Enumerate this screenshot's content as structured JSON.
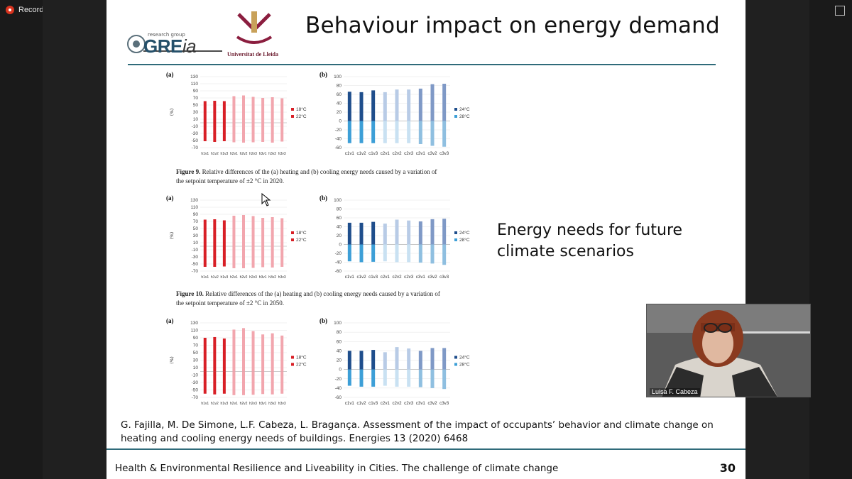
{
  "recording": {
    "label": "Recording"
  },
  "slide": {
    "title": "Behaviour impact on energy demand",
    "logo": {
      "small": "research group",
      "brand_main": "GRE",
      "brand_tail": "ia",
      "university": "Universitat de Lleida"
    },
    "energy_text_line1": "Energy needs for future",
    "energy_text_line2": "climate scenarios",
    "reference_line1": "G. Fajilla, M. De Simone, L.F. Cabeza, L. Bragança. Assessment of the impact of occupants’ behavior and climate change on",
    "reference_line2": "heating and cooling energy needs of buildings. Energies 13 (2020) 6468",
    "footer": "Health & Environmental Resilience and Liveability in Cities. The challenge of climate change",
    "page_number": "30",
    "captions": [
      {
        "label": "Figure 9.",
        "text": " Relative differences of the (a) heating and (b) cooling energy needs caused by a variation of",
        "line2": "the setpoint temperature of ±2 °C in 2020."
      },
      {
        "label": "Figure 10.",
        "text": " Relative differences of the (a) heating and (b) cooling energy needs caused by a variation of",
        "line2": "the setpoint temperature of ±2 °C in 2050."
      }
    ]
  },
  "video": {
    "name": "Luisa F. Cabeza"
  },
  "chart_data": [
    {
      "type": "bar",
      "panel": "(a)",
      "ylabel": "(%)",
      "ylim": [
        -70,
        130
      ],
      "yticks": [
        130,
        110,
        90,
        70,
        50,
        30,
        10,
        -10,
        -30,
        -50,
        -70
      ],
      "categories": [
        "h1v1",
        "h1v2",
        "h1v3",
        "h2v1",
        "h2v2",
        "h2v3",
        "h3v1",
        "h3v2",
        "h3v3"
      ],
      "series": [
        {
          "name": "18°C",
          "values": [
            -52,
            -54,
            -52,
            -55,
            -56,
            -55,
            -54,
            -56,
            -53
          ]
        },
        {
          "name": "22°C",
          "values": [
            61,
            62,
            61,
            75,
            77,
            73,
            70,
            72,
            69
          ]
        }
      ],
      "colors": {
        "dark": "#d81f26",
        "light": "#f2a6ae"
      }
    },
    {
      "type": "bar",
      "panel": "(b)",
      "ylim": [
        -60,
        100
      ],
      "yticks": [
        100,
        80,
        60,
        40,
        20,
        0,
        -20,
        -40,
        -60
      ],
      "categories": [
        "c1v1",
        "c1v2",
        "c1v3",
        "c2v1",
        "c2v2",
        "c2v3",
        "c3v1",
        "c3v2",
        "c3v3"
      ],
      "series": [
        {
          "name": "24°C",
          "values": [
            66,
            65,
            69,
            65,
            71,
            71,
            73,
            83,
            84
          ]
        },
        {
          "name": "28°C",
          "values": [
            -50,
            -50,
            -50,
            -50,
            -50,
            -50,
            -52,
            -56,
            -58
          ]
        }
      ],
      "colors": {
        "g1": "#1f4e8c",
        "g2": "#b8cbe6",
        "g3": "#7f99c6",
        "neg1": "#3d9fd7",
        "neg2": "#c9e1f2",
        "neg3": "#8fbfe0"
      }
    },
    {
      "type": "bar",
      "panel": "(a)",
      "ylabel": "(%)",
      "ylim": [
        -70,
        130
      ],
      "yticks": [
        130,
        110,
        90,
        70,
        50,
        30,
        10,
        -10,
        -30,
        -50,
        -70
      ],
      "categories": [
        "h1v1",
        "h1v2",
        "h1v3",
        "h2v1",
        "h2v2",
        "h2v3",
        "h3v1",
        "h3v2",
        "h3v3"
      ],
      "series": [
        {
          "name": "18°C",
          "values": [
            -58,
            -58,
            -57,
            -62,
            -62,
            -61,
            -59,
            -60,
            -58
          ]
        },
        {
          "name": "22°C",
          "values": [
            75,
            76,
            73,
            86,
            88,
            85,
            80,
            82,
            79
          ]
        }
      ],
      "colors": {
        "dark": "#d81f26",
        "light": "#f2a6ae"
      }
    },
    {
      "type": "bar",
      "panel": "(b)",
      "ylim": [
        -60,
        100
      ],
      "yticks": [
        100,
        80,
        60,
        40,
        20,
        0,
        -20,
        -40,
        -60
      ],
      "categories": [
        "c1v1",
        "c1v2",
        "c1v3",
        "c2v1",
        "c2v2",
        "c2v3",
        "c3v1",
        "c3v2",
        "c3v3"
      ],
      "series": [
        {
          "name": "24°C",
          "values": [
            49,
            49,
            51,
            47,
            56,
            54,
            52,
            57,
            58
          ]
        },
        {
          "name": "28°C",
          "values": [
            -38,
            -40,
            -39,
            -38,
            -40,
            -40,
            -41,
            -43,
            -46
          ]
        }
      ],
      "colors": {
        "g1": "#1f4e8c",
        "g2": "#b8cbe6",
        "g3": "#7f99c6",
        "neg1": "#3d9fd7",
        "neg2": "#c9e1f2",
        "neg3": "#8fbfe0"
      }
    },
    {
      "type": "bar",
      "panel": "(a)",
      "ylabel": "(%)",
      "ylim": [
        -70,
        130
      ],
      "yticks": [
        130,
        110,
        90,
        70,
        50,
        30,
        10,
        -10,
        -30,
        -50,
        -70
      ],
      "categories": [
        "h1v1",
        "h1v2",
        "h1v3",
        "h2v1",
        "h2v2",
        "h2v3",
        "h3v1",
        "h3v2",
        "h3v3"
      ],
      "series": [
        {
          "name": "18°C",
          "values": [
            -60,
            -62,
            -60,
            -64,
            -64,
            -63,
            -61,
            -62,
            -60
          ]
        },
        {
          "name": "22°C",
          "values": [
            90,
            92,
            88,
            112,
            116,
            108,
            99,
            102,
            96
          ]
        }
      ],
      "colors": {
        "dark": "#d81f26",
        "light": "#f2a6ae"
      }
    },
    {
      "type": "bar",
      "panel": "(b)",
      "ylim": [
        -60,
        100
      ],
      "yticks": [
        100,
        80,
        60,
        40,
        20,
        0,
        -20,
        -40,
        -60
      ],
      "categories": [
        "c1v1",
        "c1v2",
        "c1v3",
        "c2v1",
        "c2v2",
        "c2v3",
        "c3v1",
        "c3v2",
        "c3v3"
      ],
      "series": [
        {
          "name": "24°C",
          "values": [
            40,
            40,
            42,
            37,
            48,
            45,
            40,
            46,
            46
          ]
        },
        {
          "name": "28°C",
          "values": [
            -35,
            -37,
            -37,
            -35,
            -37,
            -37,
            -38,
            -40,
            -42
          ]
        }
      ],
      "colors": {
        "g1": "#1f4e8c",
        "g2": "#b8cbe6",
        "g3": "#7f99c6",
        "neg1": "#3d9fd7",
        "neg2": "#c9e1f2",
        "neg3": "#8fbfe0"
      }
    }
  ]
}
